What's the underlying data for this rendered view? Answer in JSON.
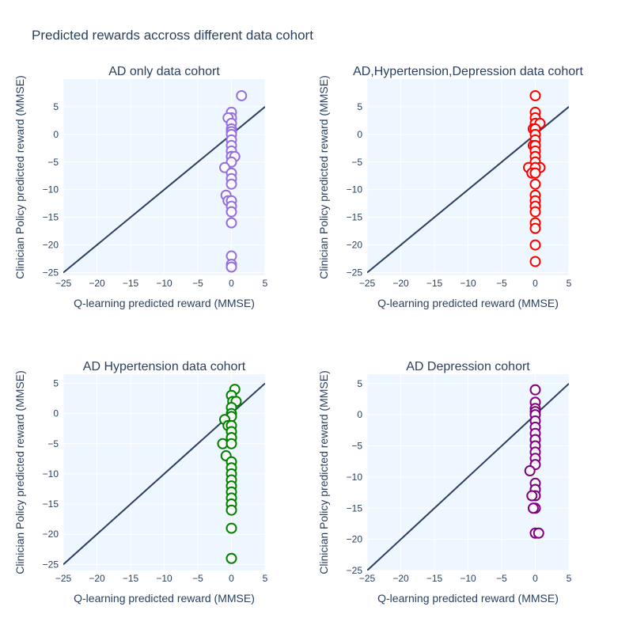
{
  "title": "Predicted rewards accross different data cohort",
  "colors": {
    "plot_bg": "#eef6ff",
    "grid": "#ffffff",
    "diagonal": "#2a3f5f",
    "text": "#2a3f5f"
  },
  "chart_data": [
    {
      "type": "scatter",
      "title": "AD only data cohort",
      "xlabel": "Q-learning predicted reward (MMSE)",
      "ylabel": "Clinician Policy predicted reward (MMSE)",
      "xlim": [
        -25,
        5
      ],
      "ylim": [
        -25.5,
        10
      ],
      "xticks": [
        -25,
        -20,
        -15,
        -10,
        -5,
        0,
        5
      ],
      "yticks": [
        -25,
        -20,
        -15,
        -10,
        -5,
        0,
        5
      ],
      "grid": true,
      "marker_color": "#9370db",
      "reference_line": {
        "x": [
          -25,
          5
        ],
        "y": [
          -25,
          5
        ]
      },
      "x": [
        1.5,
        0,
        0,
        -0.5,
        0,
        0,
        0,
        0,
        0,
        0,
        0,
        0,
        0,
        0.5,
        0,
        -1,
        0,
        0,
        0,
        -0.8,
        -0.5,
        0,
        0,
        0,
        0,
        0,
        0,
        0
      ],
      "y": [
        7,
        4,
        3,
        3,
        2,
        1,
        0.5,
        0,
        -1,
        -2,
        -3,
        -4,
        -4,
        -4,
        -5,
        -6,
        -7,
        -8,
        -9,
        -11,
        -12,
        -12,
        -13,
        -14,
        -16,
        -22,
        -23.5,
        -24
      ]
    },
    {
      "type": "scatter",
      "title": "AD,Hypertension,Depression data cohort",
      "xlabel": "Q-learning predicted reward (MMSE)",
      "ylabel": "Clinician Policy predicted reward (MMSE)",
      "xlim": [
        -25,
        5
      ],
      "ylim": [
        -25.5,
        10
      ],
      "xticks": [
        -25,
        -20,
        -15,
        -10,
        -5,
        0,
        5
      ],
      "yticks": [
        -25,
        -20,
        -15,
        -10,
        -5,
        0,
        5
      ],
      "grid": true,
      "marker_color": "#ff0000",
      "reference_line": {
        "x": [
          -25,
          5
        ],
        "y": [
          -25,
          5
        ]
      },
      "x": [
        0,
        0,
        0,
        0,
        0.7,
        -0.3,
        0,
        0,
        0,
        -0.3,
        0,
        0,
        0,
        0,
        -1,
        0.7,
        0,
        -0.5,
        0,
        0,
        0,
        0,
        0,
        0,
        0,
        0,
        0,
        0
      ],
      "y": [
        7,
        4,
        3,
        2,
        2,
        1,
        1,
        0,
        -1,
        -2,
        -2,
        -3,
        -4,
        -5,
        -6,
        -6,
        -6,
        -7,
        -7,
        -9,
        -11,
        -12,
        -13,
        -14,
        -16,
        -17,
        -20,
        -23
      ]
    },
    {
      "type": "scatter",
      "title": "AD Hypertension data cohort",
      "xlabel": "Q-learning predicted reward (MMSE)",
      "ylabel": "Clinician Policy predicted reward (MMSE)",
      "xlim": [
        -25,
        5
      ],
      "ylim": [
        -26,
        6.5
      ],
      "xticks": [
        -25,
        -20,
        -15,
        -10,
        -5,
        0,
        5
      ],
      "yticks": [
        -25,
        -20,
        -15,
        -10,
        -5,
        0,
        5
      ],
      "grid": true,
      "marker_color": "#008000",
      "reference_line": {
        "x": [
          -25,
          5
        ],
        "y": [
          -25,
          5
        ]
      },
      "x": [
        0.5,
        0,
        0.2,
        0.7,
        0,
        0,
        0,
        -1,
        -0.5,
        0,
        0,
        0,
        0,
        -1.3,
        0,
        -0.8,
        0,
        0,
        0,
        0,
        0,
        0,
        0,
        0,
        0,
        0,
        0,
        0
      ],
      "y": [
        4,
        3,
        2,
        2,
        1,
        0,
        -0.5,
        -1,
        -2,
        -2,
        -3,
        -4,
        -4,
        -5,
        -5,
        -7,
        -8,
        -9,
        -10,
        -11,
        -12,
        -13,
        -14,
        -15,
        -15,
        -16,
        -19,
        -24
      ]
    },
    {
      "type": "scatter",
      "title": "AD Depression cohort",
      "xlabel": "Q-learning predicted reward (MMSE)",
      "ylabel": "Clinician Policy predicted reward (MMSE)",
      "xlim": [
        -25,
        5
      ],
      "ylim": [
        -25,
        6.5
      ],
      "xticks": [
        -25,
        -20,
        -15,
        -10,
        -5,
        0,
        5
      ],
      "yticks": [
        -25,
        -20,
        -15,
        -10,
        -5,
        0,
        5
      ],
      "grid": true,
      "marker_color": "#800080",
      "reference_line": {
        "x": [
          -25,
          5
        ],
        "y": [
          -25,
          5
        ]
      },
      "x": [
        0,
        0,
        0,
        0,
        0,
        0,
        0,
        0,
        0,
        0,
        0,
        0,
        0,
        0,
        -0.8,
        0,
        0,
        0,
        0,
        -0.5,
        0,
        -0.3,
        0,
        0.5
      ],
      "y": [
        4,
        2,
        1,
        0.5,
        0,
        -1,
        -2,
        -3,
        -4,
        -4,
        -5,
        -6,
        -7,
        -8,
        -9,
        -11,
        -12,
        -12,
        -13,
        -13,
        -15,
        -15,
        -19,
        -19
      ]
    }
  ]
}
